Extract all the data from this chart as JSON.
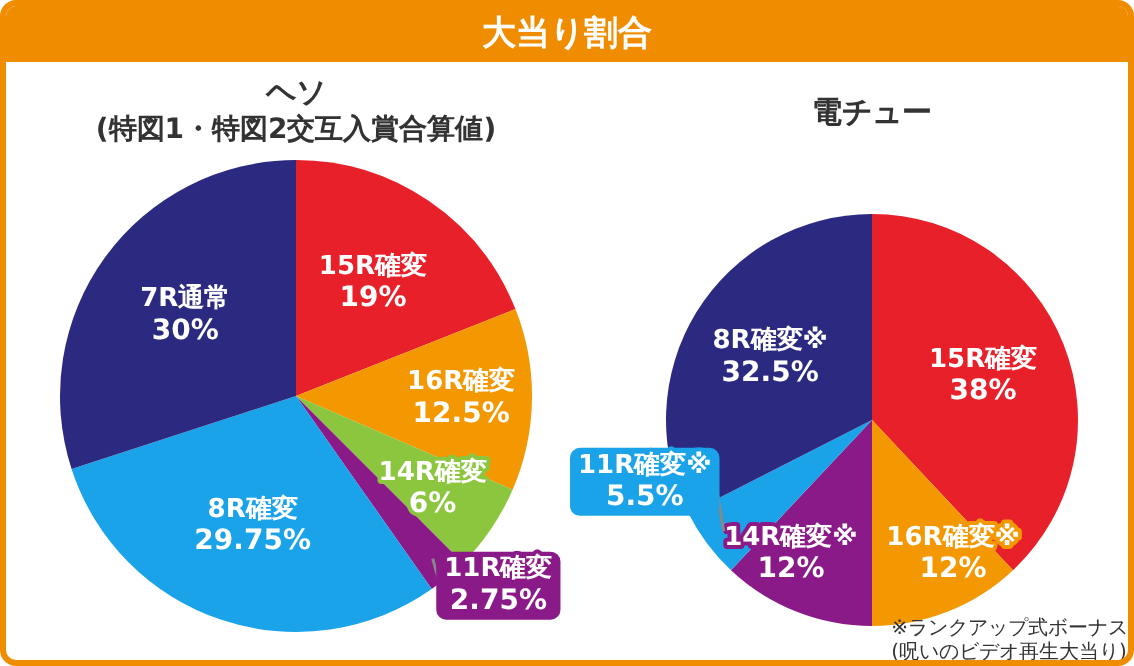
{
  "chart_data": [
    {
      "type": "other",
      "title": "大当り割合"
    },
    {
      "type": "pie",
      "title": "ヘソ",
      "subtitle": "(特図1・特図2交互入賞合算値)",
      "categories": [
        "15R確変",
        "16R確変",
        "14R確変",
        "11R確変",
        "8R確変",
        "7R通常"
      ],
      "values": [
        19,
        12.5,
        6,
        2.75,
        29.75,
        30
      ],
      "colors": [
        "#e8202a",
        "#f39800",
        "#8cc63f",
        "#8b1a89",
        "#1aa3e8",
        "#2b2a80"
      ],
      "value_labels": [
        "19%",
        "12.5%",
        "6%",
        "2.75%",
        "29.75%",
        "30%"
      ]
    },
    {
      "type": "pie",
      "title": "電チュー",
      "categories": [
        "15R確変",
        "16R確変※",
        "14R確変※",
        "11R確変※",
        "8R確変※"
      ],
      "values": [
        38,
        12,
        12,
        5.5,
        32.5
      ],
      "colors": [
        "#e8202a",
        "#f39800",
        "#8b1a89",
        "#1aa3e8",
        "#2b2a80"
      ],
      "value_labels": [
        "38%",
        "12%",
        "12%",
        "5.5%",
        "32.5%"
      ],
      "annotations": [
        "※ランクアップ式ボーナス",
        "(呪いのビデオ再生大当り)"
      ]
    }
  ]
}
